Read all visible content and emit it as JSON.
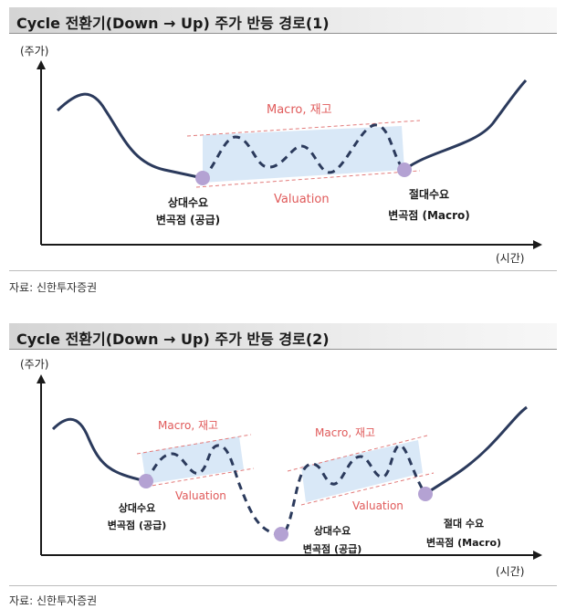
{
  "panel1": {
    "title": "Cycle 전환기(Down → Up) 주가 반등 경로(1)",
    "y_axis_label": "(주가)",
    "x_axis_label": "(시간)",
    "band_top_label": "Macro, 재고",
    "band_bottom_label": "Valuation",
    "point1_line1": "상대수요",
    "point1_line2": "변곡점 (공급)",
    "point2_line1": "절대수요",
    "point2_line2": "변곡점 (Macro)",
    "source": "자료: 신한투자증권"
  },
  "panel2": {
    "title": "Cycle 전환기(Down → Up) 주가 반등 경로(2)",
    "y_axis_label": "(주가)",
    "x_axis_label": "(시간)",
    "band1_top_label": "Macro, 재고",
    "band1_bottom_label": "Valuation",
    "band2_top_label": "Macro, 재고",
    "band2_bottom_label": "Valuation",
    "point1_line1": "상대수요",
    "point1_line2": "변곡점 (공급)",
    "point2_line1": "상대수요",
    "point2_line2": "변곡점 (공급)",
    "point3_line1": "절대 수요",
    "point3_line2": "변곡점 (Macro)",
    "source": "자료: 신한투자증권"
  },
  "colors": {
    "curve": "#2b3a5c",
    "band_fill": "#d9e8f7",
    "band_line": "#e27b7b",
    "label_red": "#e05a5a",
    "point": "#b4a2d3"
  }
}
